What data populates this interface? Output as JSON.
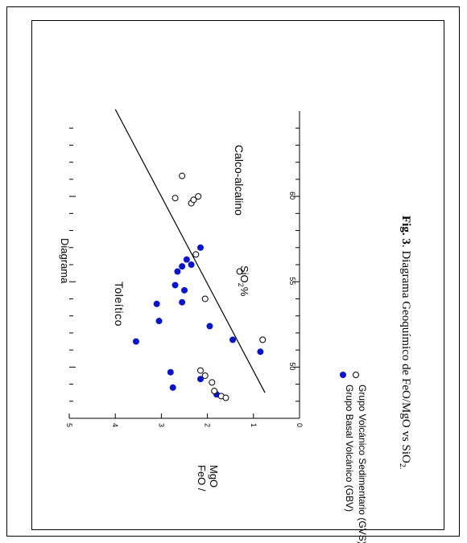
{
  "chart_data": {
    "type": "scatter",
    "title": "Diagrama",
    "xlabel": "SiO",
    "xlabel_sub": "2",
    "xlabel_suffix": "%",
    "ylabel_line1": "FeO /",
    "ylabel_line2": "MgO",
    "xlim": [
      47,
      65
    ],
    "ylim": [
      0,
      5
    ],
    "x_ticks": [
      50,
      55,
      60
    ],
    "y_ticks": [
      0,
      1,
      2,
      3,
      4,
      5
    ],
    "region_labels": [
      "Toleítico",
      "Calco-alcalino"
    ],
    "divider_line": {
      "from": [
        48.5,
        0.75
      ],
      "to": [
        65.1,
        4.0
      ]
    },
    "series": [
      {
        "name": "Grupo Basal Volcánico (GBV)",
        "marker": "filled",
        "color": "#0a14c8",
        "points": [
          [
            49.7,
            2.8
          ],
          [
            48.8,
            2.75
          ],
          [
            49.3,
            2.15
          ],
          [
            48.4,
            1.8
          ],
          [
            51.5,
            3.55
          ],
          [
            52.7,
            3.05
          ],
          [
            53.7,
            3.1
          ],
          [
            54.8,
            2.7
          ],
          [
            53.8,
            2.55
          ],
          [
            54.5,
            2.5
          ],
          [
            55.6,
            2.65
          ],
          [
            55.9,
            2.55
          ],
          [
            56.3,
            2.45
          ],
          [
            56.0,
            2.35
          ],
          [
            57.0,
            2.15
          ],
          [
            52.4,
            1.95
          ],
          [
            51.6,
            1.45
          ],
          [
            50.9,
            0.85
          ]
        ]
      },
      {
        "name": "Grupo Volcánico Sedimentario (GVS)",
        "marker": "open",
        "color": "#000000",
        "points": [
          [
            49.5,
            2.05
          ],
          [
            49.8,
            2.15
          ],
          [
            49.1,
            1.9
          ],
          [
            48.6,
            1.85
          ],
          [
            48.3,
            1.7
          ],
          [
            48.2,
            1.6
          ],
          [
            51.6,
            0.8
          ],
          [
            54.0,
            2.05
          ],
          [
            55.6,
            1.3
          ],
          [
            56.6,
            2.25
          ],
          [
            59.6,
            2.35
          ],
          [
            59.8,
            2.3
          ],
          [
            59.9,
            2.7
          ],
          [
            60.0,
            2.2
          ],
          [
            61.2,
            2.55
          ]
        ]
      }
    ]
  },
  "caption": {
    "bold": "Fig. 3",
    "text": ". Diagrama Geoquímico de FeO/MgO vs SiO",
    "sub": "2."
  }
}
